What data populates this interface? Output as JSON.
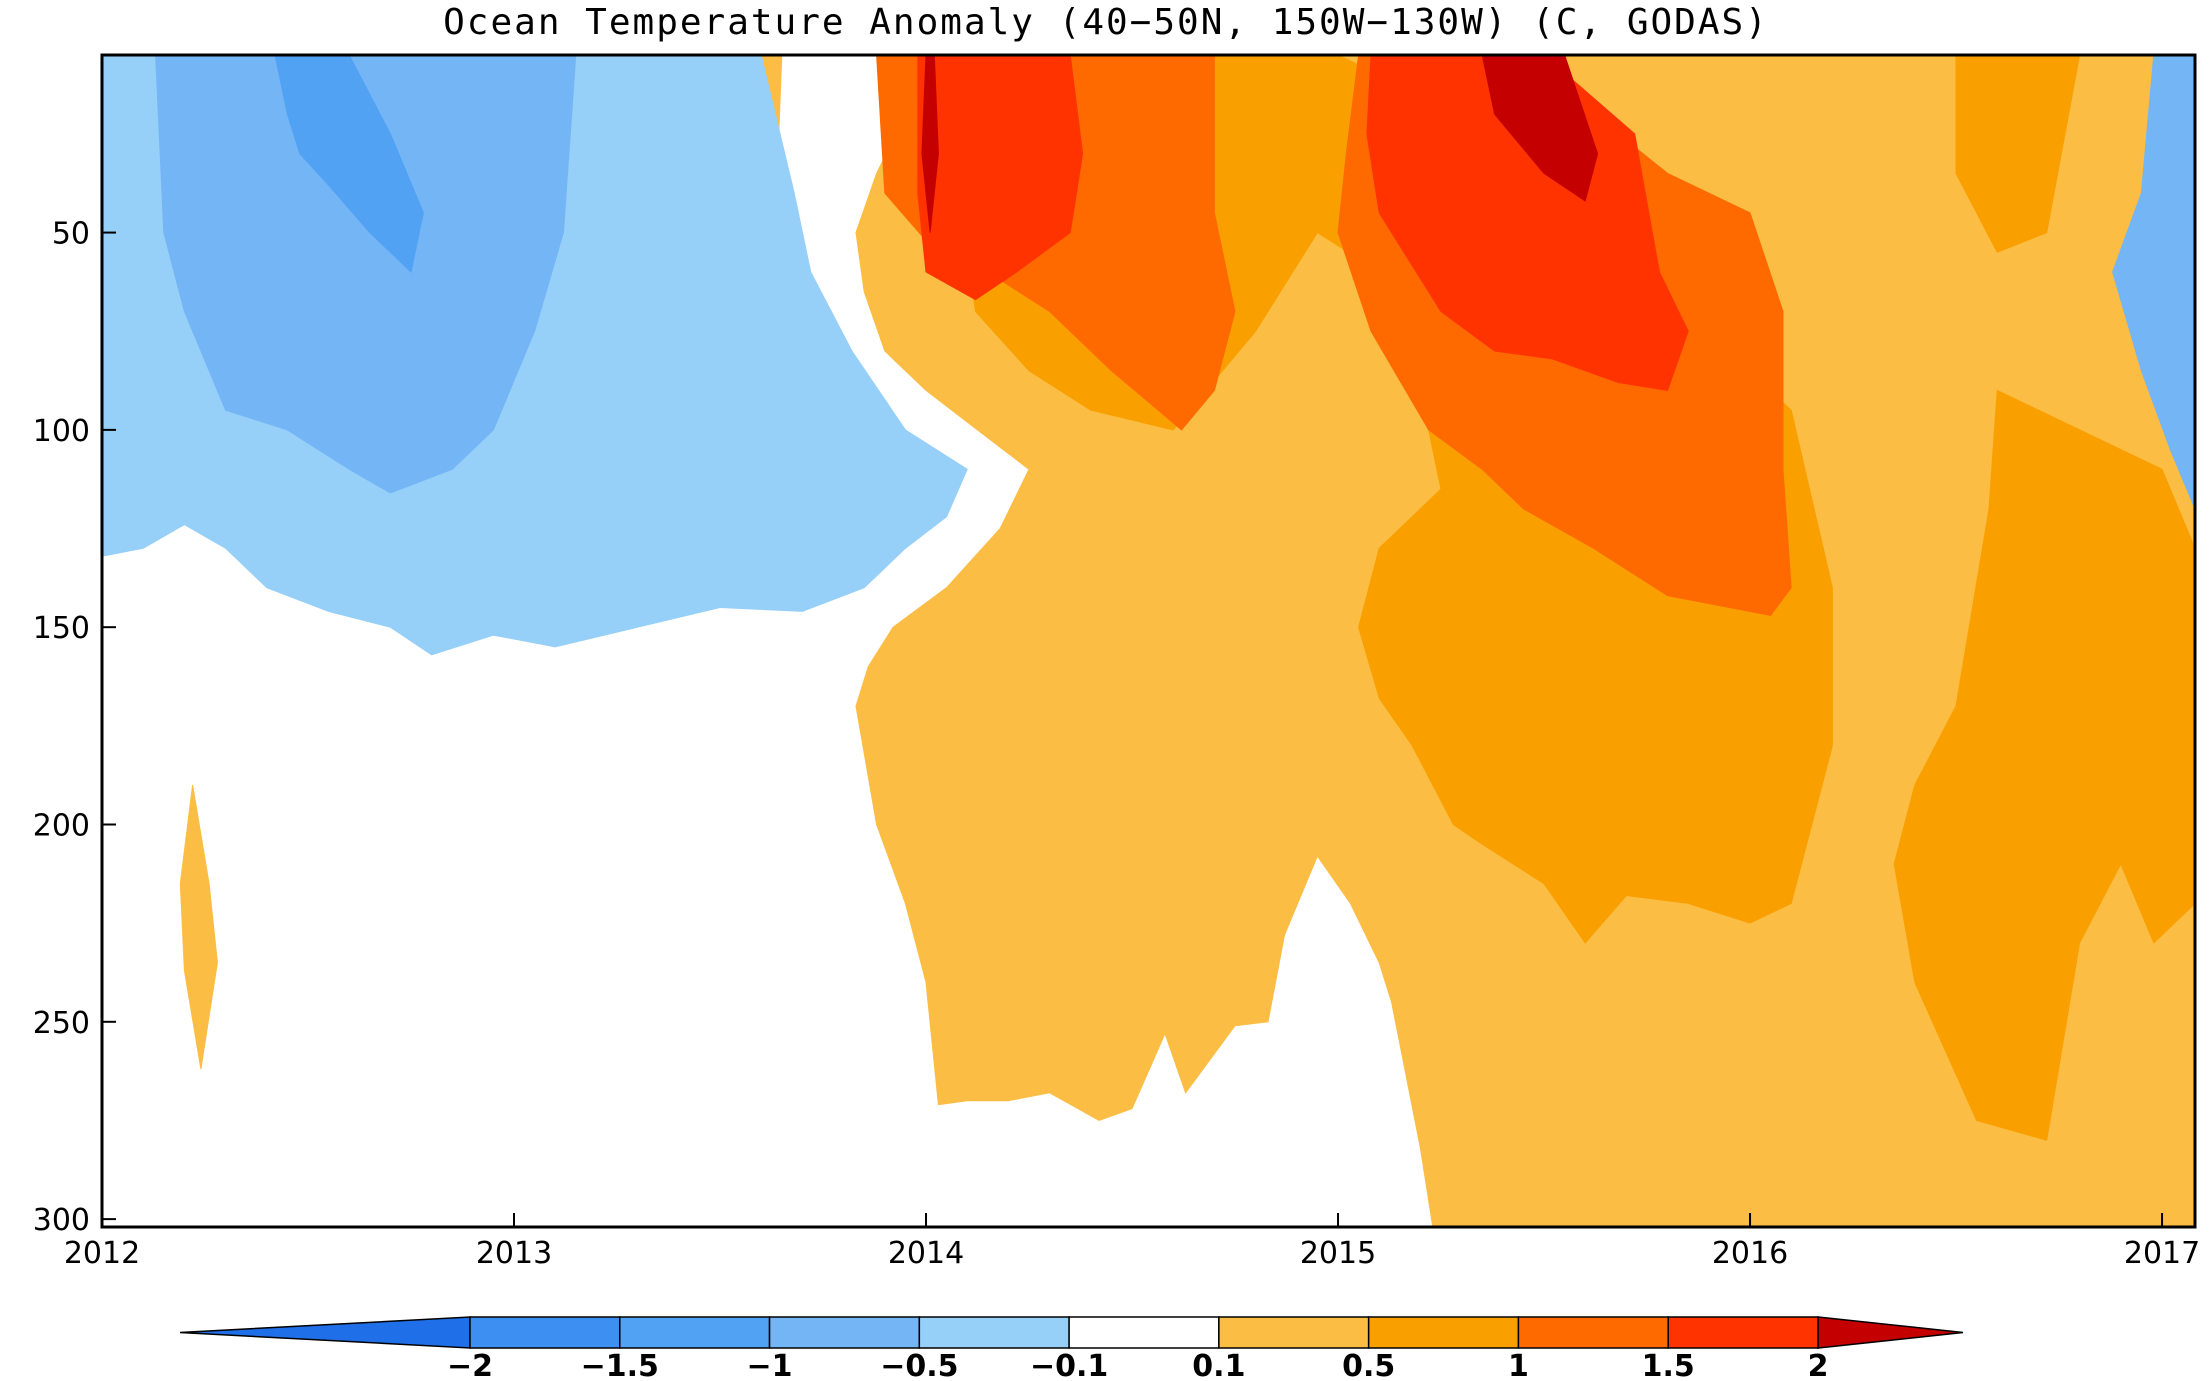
{
  "chart_data": {
    "type": "heatmap",
    "subtype": "filled-contour",
    "title": "Ocean Temperature Anomaly (40−50N, 150W−130W) (C, GODAS)",
    "xlabel": "",
    "ylabel": "",
    "xlim": [
      2012,
      2017.08
    ],
    "ylim": [
      5,
      302
    ],
    "y_inverted": true,
    "x_ticks": [
      2012,
      2013,
      2014,
      2015,
      2016,
      2017
    ],
    "x_tick_labels": [
      "2012",
      "2013",
      "2014",
      "2015",
      "2016",
      "2017"
    ],
    "y_ticks": [
      50,
      100,
      150,
      200,
      250,
      300
    ],
    "y_tick_labels": [
      "50",
      "100",
      "150",
      "200",
      "250",
      "300"
    ],
    "grid": false,
    "colorbar": {
      "orientation": "horizontal",
      "placement": "bottom",
      "boundaries": [
        -2,
        -1.5,
        -1,
        -0.5,
        -0.1,
        0.1,
        0.5,
        1,
        1.5,
        2
      ],
      "labels": [
        "−2",
        "−1.5",
        "−1",
        "−0.5",
        "−0.1",
        "0.1",
        "0.5",
        "1",
        "1.5",
        "2"
      ],
      "colors": [
        "#1E6FE8",
        "#3D8FF2",
        "#52A2F4",
        "#74B5F6",
        "#96CFF8",
        "#FFFFFF",
        "#FBBD44",
        "#F9A000",
        "#FF6A00",
        "#FF3300",
        "#C40000"
      ]
    },
    "contours": [
      {
        "level": 0.1,
        "color": "#FBBD44",
        "polys": [
          [
            [
              2013.98,
              5
            ],
            [
              2017.08,
              5
            ],
            [
              2017.08,
              302
            ],
            [
              2015.23,
              302
            ],
            [
              2015.2,
              282
            ],
            [
              2015.13,
              245
            ],
            [
              2015.1,
              235
            ],
            [
              2015.03,
              220
            ],
            [
              2014.95,
              208
            ],
            [
              2014.87,
              228
            ],
            [
              2014.83,
              250
            ],
            [
              2014.75,
              251
            ],
            [
              2014.63,
              268
            ],
            [
              2014.58,
              253
            ],
            [
              2014.5,
              272
            ],
            [
              2014.42,
              275
            ],
            [
              2014.3,
              268
            ],
            [
              2014.2,
              270
            ],
            [
              2014.1,
              270
            ],
            [
              2014.03,
              271
            ],
            [
              2014.0,
              240
            ],
            [
              2013.95,
              220
            ],
            [
              2013.88,
              200
            ],
            [
              2013.83,
              170
            ],
            [
              2013.86,
              160
            ],
            [
              2013.92,
              150
            ],
            [
              2014.05,
              140
            ],
            [
              2014.18,
              125
            ],
            [
              2014.25,
              110
            ],
            [
              2014.15,
              102
            ],
            [
              2014.0,
              90
            ],
            [
              2013.9,
              80
            ],
            [
              2013.85,
              65
            ],
            [
              2013.83,
              50
            ],
            [
              2013.88,
              35
            ],
            [
              2013.95,
              20
            ]
          ],
          [
            [
              2012.22,
              190
            ],
            [
              2012.26,
              215
            ],
            [
              2012.28,
              235
            ],
            [
              2012.24,
              262
            ],
            [
              2012.2,
              237
            ],
            [
              2012.19,
              215
            ]
          ],
          [
            [
              2012.72,
              5
            ],
            [
              2012.78,
              5
            ],
            [
              2012.77,
              24
            ],
            [
              2012.75,
              30
            ],
            [
              2012.73,
              20
            ]
          ],
          [
            [
              2013.22,
              5
            ],
            [
              2013.65,
              5
            ],
            [
              2013.64,
              32
            ],
            [
              2013.58,
              42
            ],
            [
              2013.5,
              40
            ],
            [
              2013.38,
              40
            ],
            [
              2013.3,
              35
            ],
            [
              2013.25,
              25
            ]
          ]
        ]
      },
      {
        "level": 0.5,
        "color": "#F9A000",
        "polys": [
          [
            [
              2014.12,
              5
            ],
            [
              2015.0,
              5
            ],
            [
              2015.1,
              10
            ],
            [
              2015.3,
              30
            ],
            [
              2015.5,
              35
            ],
            [
              2016.1,
              95
            ],
            [
              2016.2,
              140
            ],
            [
              2016.2,
              180
            ],
            [
              2016.15,
              200
            ],
            [
              2016.1,
              220
            ],
            [
              2016.0,
              225
            ],
            [
              2015.85,
              220
            ],
            [
              2015.7,
              218
            ],
            [
              2015.6,
              230
            ],
            [
              2015.5,
              215
            ],
            [
              2015.35,
              205
            ],
            [
              2015.28,
              200
            ],
            [
              2015.18,
              180
            ],
            [
              2015.1,
              168
            ],
            [
              2015.05,
              150
            ],
            [
              2015.1,
              130
            ],
            [
              2015.25,
              115
            ],
            [
              2015.2,
              90
            ],
            [
              2015.1,
              60
            ],
            [
              2014.95,
              50
            ],
            [
              2014.8,
              75
            ],
            [
              2014.6,
              100
            ],
            [
              2014.4,
              95
            ],
            [
              2014.25,
              85
            ],
            [
              2014.12,
              70
            ],
            [
              2014.08,
              40
            ]
          ],
          [
            [
              2016.5,
              5
            ],
            [
              2016.8,
              5
            ],
            [
              2016.72,
              50
            ],
            [
              2016.6,
              55
            ],
            [
              2016.5,
              35
            ]
          ],
          [
            [
              2016.6,
              90
            ],
            [
              2017.0,
              110
            ],
            [
              2017.08,
              130
            ],
            [
              2017.08,
              220
            ],
            [
              2016.98,
              230
            ],
            [
              2016.9,
              210
            ],
            [
              2016.8,
              230
            ],
            [
              2016.72,
              280
            ],
            [
              2016.55,
              275
            ],
            [
              2016.4,
              240
            ],
            [
              2016.35,
              210
            ],
            [
              2016.4,
              190
            ],
            [
              2016.5,
              170
            ],
            [
              2016.58,
              120
            ]
          ]
        ]
      },
      {
        "level": 1.0,
        "color": "#FF6A00",
        "polys": [
          [
            [
              2013.88,
              5
            ],
            [
              2014.7,
              5
            ],
            [
              2014.7,
              45
            ],
            [
              2014.75,
              70
            ],
            [
              2014.7,
              90
            ],
            [
              2014.62,
              100
            ],
            [
              2014.45,
              85
            ],
            [
              2014.3,
              70
            ],
            [
              2014.15,
              60
            ],
            [
              2014.0,
              52
            ],
            [
              2013.9,
              40
            ]
          ],
          [
            [
              2015.05,
              5
            ],
            [
              2015.4,
              5
            ],
            [
              2015.62,
              20
            ],
            [
              2015.8,
              35
            ],
            [
              2016.0,
              45
            ],
            [
              2016.08,
              70
            ],
            [
              2016.08,
              110
            ],
            [
              2016.1,
              140
            ],
            [
              2016.05,
              147
            ],
            [
              2015.95,
              145
            ],
            [
              2015.8,
              142
            ],
            [
              2015.62,
              130
            ],
            [
              2015.45,
              120
            ],
            [
              2015.35,
              110
            ],
            [
              2015.22,
              100
            ],
            [
              2015.08,
              75
            ],
            [
              2015.0,
              50
            ],
            [
              2015.02,
              30
            ]
          ]
        ]
      },
      {
        "level": 1.5,
        "color": "#FF3300",
        "polys": [
          [
            [
              2013.98,
              5
            ],
            [
              2014.35,
              5
            ],
            [
              2014.38,
              30
            ],
            [
              2014.35,
              50
            ],
            [
              2014.22,
              60
            ],
            [
              2014.12,
              67
            ],
            [
              2014.0,
              60
            ],
            [
              2013.98,
              40
            ]
          ],
          [
            [
              2015.08,
              5
            ],
            [
              2015.5,
              5
            ],
            [
              2015.72,
              25
            ],
            [
              2015.78,
              60
            ],
            [
              2015.85,
              75
            ],
            [
              2015.8,
              90
            ],
            [
              2015.68,
              88
            ],
            [
              2015.52,
              82
            ],
            [
              2015.38,
              80
            ],
            [
              2015.25,
              70
            ],
            [
              2015.1,
              45
            ],
            [
              2015.07,
              25
            ]
          ]
        ]
      },
      {
        "level": 2.0,
        "color": "#C40000",
        "polys": [
          [
            [
              2014.0,
              5
            ],
            [
              2014.02,
              5
            ],
            [
              2014.03,
              30
            ],
            [
              2014.01,
              50
            ],
            [
              2013.99,
              30
            ]
          ],
          [
            [
              2015.35,
              5
            ],
            [
              2015.55,
              5
            ],
            [
              2015.63,
              30
            ],
            [
              2015.6,
              42
            ],
            [
              2015.5,
              35
            ],
            [
              2015.38,
              20
            ]
          ]
        ]
      },
      {
        "level": -0.1,
        "color": "#96CFF8",
        "polys": [
          [
            [
              2012.0,
              5
            ],
            [
              2013.6,
              5
            ],
            [
              2013.68,
              40
            ],
            [
              2013.72,
              60
            ],
            [
              2013.82,
              80
            ],
            [
              2013.95,
              100
            ],
            [
              2014.1,
              110
            ],
            [
              2014.05,
              122
            ],
            [
              2013.95,
              130
            ],
            [
              2013.85,
              140
            ],
            [
              2013.7,
              146
            ],
            [
              2013.5,
              145
            ],
            [
              2013.3,
              150
            ],
            [
              2013.1,
              155
            ],
            [
              2012.95,
              152
            ],
            [
              2012.8,
              157
            ],
            [
              2012.7,
              150
            ],
            [
              2012.55,
              146
            ],
            [
              2012.4,
              140
            ],
            [
              2012.3,
              130
            ],
            [
              2012.2,
              124
            ],
            [
              2012.1,
              130
            ],
            [
              2012.0,
              132
            ]
          ]
        ]
      },
      {
        "level": -0.5,
        "color": "#74B5F6",
        "polys": [
          [
            [
              2012.13,
              5
            ],
            [
              2013.15,
              5
            ],
            [
              2013.12,
              50
            ],
            [
              2013.05,
              75
            ],
            [
              2012.95,
              100
            ],
            [
              2012.85,
              110
            ],
            [
              2012.7,
              116
            ],
            [
              2012.6,
              110
            ],
            [
              2012.45,
              100
            ],
            [
              2012.3,
              95
            ],
            [
              2012.2,
              70
            ],
            [
              2012.15,
              50
            ]
          ],
          [
            [
              2016.98,
              5
            ],
            [
              2017.08,
              5
            ],
            [
              2017.08,
              120
            ],
            [
              2017.02,
              105
            ],
            [
              2016.95,
              85
            ],
            [
              2016.88,
              60
            ],
            [
              2016.95,
              40
            ]
          ]
        ]
      },
      {
        "level": -1.0,
        "color": "#52A2F4",
        "polys": [
          [
            [
              2012.42,
              5
            ],
            [
              2012.6,
              5
            ],
            [
              2012.7,
              25
            ],
            [
              2012.78,
              45
            ],
            [
              2012.75,
              60
            ],
            [
              2012.65,
              50
            ],
            [
              2012.55,
              38
            ],
            [
              2012.48,
              30
            ],
            [
              2012.45,
              20
            ]
          ]
        ]
      }
    ]
  }
}
